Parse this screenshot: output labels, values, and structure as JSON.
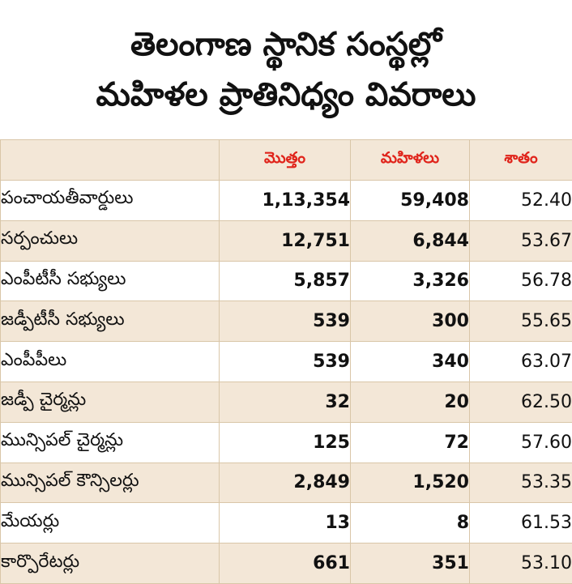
{
  "title": {
    "line1": "తెలంగాణ స్థానిక సంస్థల్లో",
    "line2": "మహిళల ప్రాతినిధ్యం వివరాలు"
  },
  "colors": {
    "header_text": "#e0241b",
    "band": "#f3e7d7",
    "border": "#d9c6a8"
  },
  "chart_data": {
    "type": "table",
    "columns": [
      "",
      "మొత్తం",
      "మహిళలు",
      "శాతం"
    ],
    "rows": [
      {
        "label": "పంచాయతీవార్డులు",
        "total": "1,13,354",
        "women": "59,408",
        "percent": "52.40"
      },
      {
        "label": "సర్పంచులు",
        "total": "12,751",
        "women": "6,844",
        "percent": "53.67"
      },
      {
        "label": "ఎంపీటీసీ సభ్యులు",
        "total": "5,857",
        "women": "3,326",
        "percent": "56.78"
      },
      {
        "label": "జడ్పీటీసీ సభ్యులు",
        "total": "539",
        "women": "300",
        "percent": "55.65"
      },
      {
        "label": "ఎంపీపీలు",
        "total": "539",
        "women": "340",
        "percent": "63.07"
      },
      {
        "label": "జడ్పీ చైర్మన్లు",
        "total": "32",
        "women": "20",
        "percent": "62.50"
      },
      {
        "label": "మున్సిపల్ చైర్మన్లు",
        "total": "125",
        "women": "72",
        "percent": "57.60"
      },
      {
        "label": "మున్సిపల్ కౌన్సిలర్లు",
        "total": "2,849",
        "women": "1,520",
        "percent": "53.35"
      },
      {
        "label": "మేయర్లు",
        "total": "13",
        "women": "8",
        "percent": "61.53"
      },
      {
        "label": "కార్పొరేటర్లు",
        "total": "661",
        "women": "351",
        "percent": "53.10"
      }
    ]
  }
}
